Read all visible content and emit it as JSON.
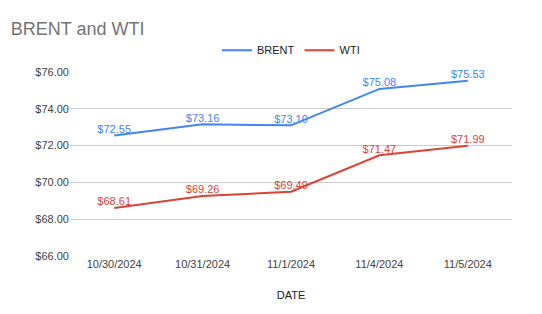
{
  "chart_data": {
    "type": "line",
    "title": "BRENT and WTI",
    "x_label": "DATE",
    "categories": [
      "10/30/2024",
      "10/31/2024",
      "11/1/2024",
      "11/4/2024",
      "11/5/2024"
    ],
    "series": [
      {
        "name": "BRENT",
        "color": "#4285f4",
        "values": [
          72.55,
          73.16,
          73.1,
          75.08,
          75.53
        ],
        "value_labels": [
          "$72.55",
          "$73.16",
          "$73.10",
          "$75.08",
          "$75.53"
        ]
      },
      {
        "name": "WTI",
        "color": "#db4437",
        "values": [
          68.61,
          69.26,
          69.49,
          71.47,
          71.99
        ],
        "value_labels": [
          "$68.61",
          "$69.26",
          "$69.49",
          "$71.47",
          "$71.99"
        ]
      }
    ],
    "ylim": [
      66,
      76
    ],
    "yticks": [
      {
        "value": 66,
        "label": "$66.00"
      },
      {
        "value": 68,
        "label": "$68.00"
      },
      {
        "value": 70,
        "label": "$70.00"
      },
      {
        "value": 72,
        "label": "$72.00"
      },
      {
        "value": 74,
        "label": "$74.00"
      },
      {
        "value": 76,
        "label": "$76.00"
      }
    ],
    "grid": true,
    "legend": "top",
    "data_labels": true
  }
}
